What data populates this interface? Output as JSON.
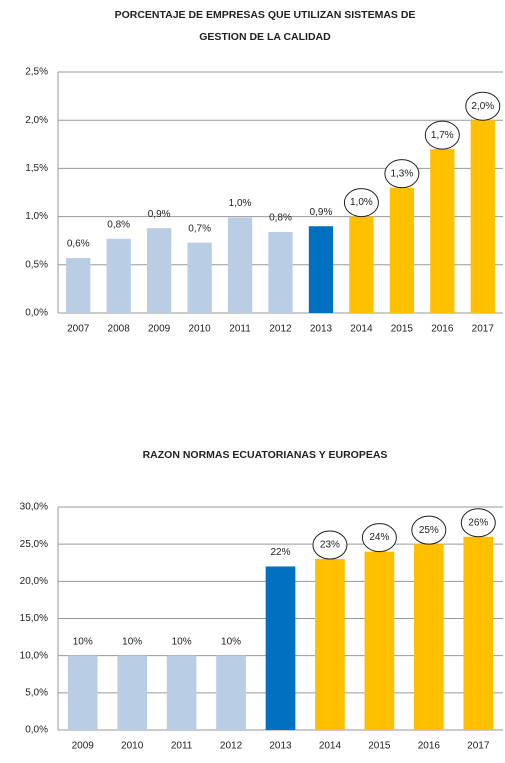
{
  "chart_data": [
    {
      "type": "bar",
      "title": [
        "PORCENTAJE DE EMPRESAS QUE UTILIZAN SISTEMAS DE",
        "GESTION DE LA CALIDAD"
      ],
      "categories": [
        "2007",
        "2008",
        "2009",
        "2010",
        "2011",
        "2012",
        "2013",
        "2014",
        "2015",
        "2016",
        "2017"
      ],
      "values": [
        0.57,
        0.77,
        0.88,
        0.73,
        0.99,
        0.84,
        0.9,
        1.0,
        1.3,
        1.7,
        2.0
      ],
      "value_labels": [
        "0,6%",
        "0,8%",
        "0,9%",
        "0,7%",
        "1,0%",
        "0,8%",
        "0,9%",
        "1,0%",
        "1,3%",
        "1,7%",
        "2,0%"
      ],
      "colors": [
        "#b9cde5",
        "#b9cde5",
        "#b9cde5",
        "#b9cde5",
        "#b9cde5",
        "#b9cde5",
        "#0070c0",
        "#ffc000",
        "#ffc000",
        "#ffc000",
        "#ffc000"
      ],
      "ylim": [
        0,
        2.5
      ],
      "yticks": [
        {
          "value": 0,
          "label": "0,0%"
        },
        {
          "value": 0.5,
          "label": "0,5%"
        },
        {
          "value": 1,
          "label": "1,0%"
        },
        {
          "value": 1.5,
          "label": "1,5%"
        },
        {
          "value": 2,
          "label": "2,0%"
        },
        {
          "value": 2.5,
          "label": "2,5%"
        }
      ],
      "grid": true
    },
    {
      "type": "bar",
      "title": [
        "RAZON NORMAS ECUATORIANAS Y EUROPEAS"
      ],
      "categories": [
        "2009",
        "2010",
        "2011",
        "2012",
        "2013",
        "2014",
        "2015",
        "2016",
        "2017"
      ],
      "values": [
        10,
        10,
        10,
        10,
        22,
        23,
        24,
        25,
        26
      ],
      "value_labels": [
        "10%",
        "10%",
        "10%",
        "10%",
        "22%",
        "23%",
        "24%",
        "25%",
        "26%"
      ],
      "colors": [
        "#b9cde5",
        "#b9cde5",
        "#b9cde5",
        "#b9cde5",
        "#0070c0",
        "#ffc000",
        "#ffc000",
        "#ffc000",
        "#ffc000"
      ],
      "ylim": [
        0,
        30
      ],
      "yticks": [
        {
          "value": 0,
          "label": "0,0%"
        },
        {
          "value": 5,
          "label": "5,0%"
        },
        {
          "value": 10,
          "label": "10,0%"
        },
        {
          "value": 15,
          "label": "15,0%"
        },
        {
          "value": 20,
          "label": "20,0%"
        },
        {
          "value": 25,
          "label": "25,0%"
        },
        {
          "value": 30,
          "label": "30,0%"
        }
      ],
      "grid": true
    }
  ]
}
